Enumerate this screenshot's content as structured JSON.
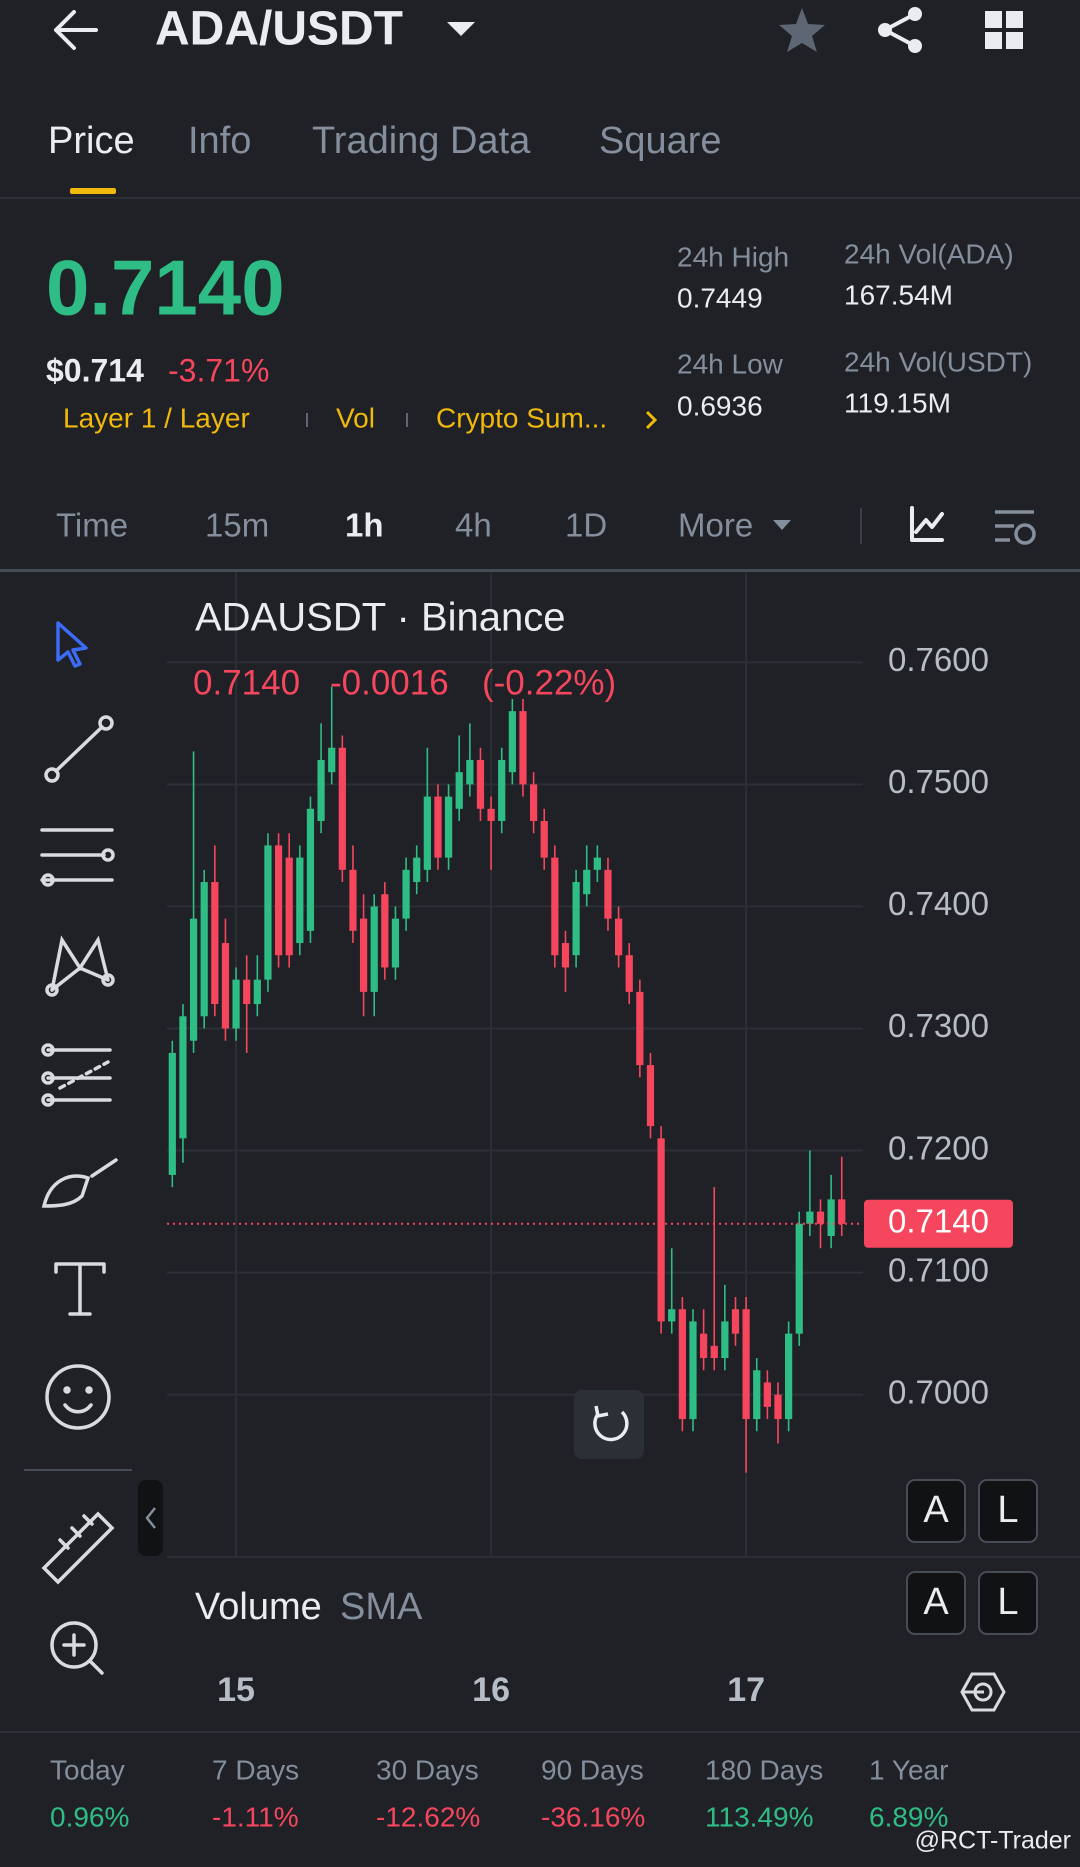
{
  "header": {
    "title": "ADA/USDT"
  },
  "tabs": [
    "Price",
    "Info",
    "Trading Data",
    "Square"
  ],
  "ticker": {
    "price": "0.7140",
    "usd": "$0.714",
    "change": "-3.71%",
    "tags": [
      "Layer 1 / Layer",
      "Vol",
      "Crypto Sum..."
    ],
    "stats": [
      {
        "label": "24h High",
        "value": "0.7449"
      },
      {
        "label": "24h Vol(ADA)",
        "value": "167.54M"
      },
      {
        "label": "24h Low",
        "value": "0.6936"
      },
      {
        "label": "24h Vol(USDT)",
        "value": "119.15M"
      }
    ]
  },
  "intervals": [
    "Time",
    "15m",
    "1h",
    "4h",
    "1D",
    "More"
  ],
  "chart_data": {
    "type": "candlestick",
    "title": "ADAUSDT · Binance",
    "legend": {
      "last": "0.7140",
      "change": "-0.0016",
      "percent": "(-0.22%)"
    },
    "colors": {
      "up": "#2ebd85",
      "down": "#f6465d"
    },
    "candles": [
      [
        0.718,
        0.729,
        0.717,
        0.728
      ],
      [
        0.721,
        0.732,
        0.719,
        0.731
      ],
      [
        0.729,
        0.7527,
        0.728,
        0.739
      ],
      [
        0.731,
        0.743,
        0.73,
        0.742
      ],
      [
        0.742,
        0.745,
        0.731,
        0.732
      ],
      [
        0.737,
        0.739,
        0.729,
        0.73
      ],
      [
        0.73,
        0.735,
        0.729,
        0.734
      ],
      [
        0.734,
        0.736,
        0.728,
        0.732
      ],
      [
        0.732,
        0.736,
        0.731,
        0.734
      ],
      [
        0.734,
        0.746,
        0.733,
        0.745
      ],
      [
        0.745,
        0.746,
        0.735,
        0.736
      ],
      [
        0.744,
        0.746,
        0.735,
        0.736
      ],
      [
        0.737,
        0.745,
        0.736,
        0.744
      ],
      [
        0.738,
        0.749,
        0.737,
        0.748
      ],
      [
        0.747,
        0.755,
        0.746,
        0.752
      ],
      [
        0.751,
        0.758,
        0.75,
        0.753
      ],
      [
        0.753,
        0.754,
        0.742,
        0.743
      ],
      [
        0.743,
        0.745,
        0.737,
        0.738
      ],
      [
        0.739,
        0.741,
        0.731,
        0.733
      ],
      [
        0.733,
        0.741,
        0.731,
        0.74
      ],
      [
        0.741,
        0.742,
        0.734,
        0.735
      ],
      [
        0.735,
        0.74,
        0.734,
        0.739
      ],
      [
        0.739,
        0.744,
        0.738,
        0.743
      ],
      [
        0.742,
        0.745,
        0.741,
        0.744
      ],
      [
        0.743,
        0.753,
        0.742,
        0.749
      ],
      [
        0.749,
        0.75,
        0.743,
        0.744
      ],
      [
        0.744,
        0.75,
        0.743,
        0.749
      ],
      [
        0.748,
        0.754,
        0.747,
        0.751
      ],
      [
        0.75,
        0.755,
        0.749,
        0.752
      ],
      [
        0.752,
        0.753,
        0.747,
        0.748
      ],
      [
        0.748,
        0.749,
        0.743,
        0.747
      ],
      [
        0.747,
        0.753,
        0.746,
        0.752
      ],
      [
        0.751,
        0.757,
        0.75,
        0.756
      ],
      [
        0.756,
        0.757,
        0.749,
        0.75
      ],
      [
        0.75,
        0.751,
        0.746,
        0.747
      ],
      [
        0.747,
        0.748,
        0.743,
        0.744
      ],
      [
        0.744,
        0.745,
        0.735,
        0.736
      ],
      [
        0.737,
        0.738,
        0.733,
        0.735
      ],
      [
        0.736,
        0.743,
        0.735,
        0.742
      ],
      [
        0.741,
        0.745,
        0.74,
        0.743
      ],
      [
        0.743,
        0.745,
        0.742,
        0.744
      ],
      [
        0.743,
        0.744,
        0.738,
        0.739
      ],
      [
        0.739,
        0.74,
        0.735,
        0.736
      ],
      [
        0.736,
        0.737,
        0.732,
        0.733
      ],
      [
        0.733,
        0.734,
        0.726,
        0.727
      ],
      [
        0.727,
        0.728,
        0.721,
        0.722
      ],
      [
        0.721,
        0.722,
        0.705,
        0.706
      ],
      [
        0.706,
        0.712,
        0.705,
        0.707
      ],
      [
        0.707,
        0.708,
        0.697,
        0.698
      ],
      [
        0.698,
        0.707,
        0.697,
        0.706
      ],
      [
        0.705,
        0.707,
        0.702,
        0.703
      ],
      [
        0.704,
        0.717,
        0.702,
        0.703
      ],
      [
        0.703,
        0.709,
        0.702,
        0.706
      ],
      [
        0.707,
        0.708,
        0.704,
        0.705
      ],
      [
        0.707,
        0.708,
        0.6936,
        0.698
      ],
      [
        0.698,
        0.703,
        0.697,
        0.702
      ],
      [
        0.701,
        0.702,
        0.698,
        0.699
      ],
      [
        0.7,
        0.701,
        0.696,
        0.698
      ],
      [
        0.698,
        0.706,
        0.697,
        0.705
      ],
      [
        0.705,
        0.715,
        0.704,
        0.714
      ],
      [
        0.714,
        0.72,
        0.713,
        0.715
      ],
      [
        0.715,
        0.716,
        0.712,
        0.714
      ],
      [
        0.713,
        0.718,
        0.712,
        0.716
      ],
      [
        0.716,
        0.7195,
        0.713,
        0.714
      ]
    ],
    "xlim": [
      -0.5,
      65
    ],
    "xticks": [
      {
        "value": 6,
        "label": "15"
      },
      {
        "value": 30,
        "label": "16"
      },
      {
        "value": 54,
        "label": "17"
      }
    ],
    "ylim": [
      0.6867,
      0.7674
    ],
    "yticks": [
      {
        "value": 0.76,
        "label": "0.7600"
      },
      {
        "value": 0.75,
        "label": "0.7500"
      },
      {
        "value": 0.74,
        "label": "0.7400"
      },
      {
        "value": 0.73,
        "label": "0.7300"
      },
      {
        "value": 0.72,
        "label": "0.7200"
      },
      {
        "value": 0.71,
        "label": "0.7100"
      },
      {
        "value": 0.7,
        "label": "0.7000"
      }
    ],
    "grid": true,
    "last_price": {
      "value": 0.714,
      "label": "0.7140"
    },
    "volume_label": "Volume",
    "volume_sma": "SMA",
    "buttons": [
      "A",
      "L",
      "A",
      "L"
    ]
  },
  "performance": [
    {
      "label": "Today",
      "value": "0.96%"
    },
    {
      "label": "7 Days",
      "value": "-1.11%"
    },
    {
      "label": "30 Days",
      "value": "-12.62%"
    },
    {
      "label": "90 Days",
      "value": "-36.16%"
    },
    {
      "label": "180 Days",
      "value": "113.49%"
    },
    {
      "label": "1 Year",
      "value": "6.89%"
    }
  ],
  "watermark": "@RCT-Trader"
}
